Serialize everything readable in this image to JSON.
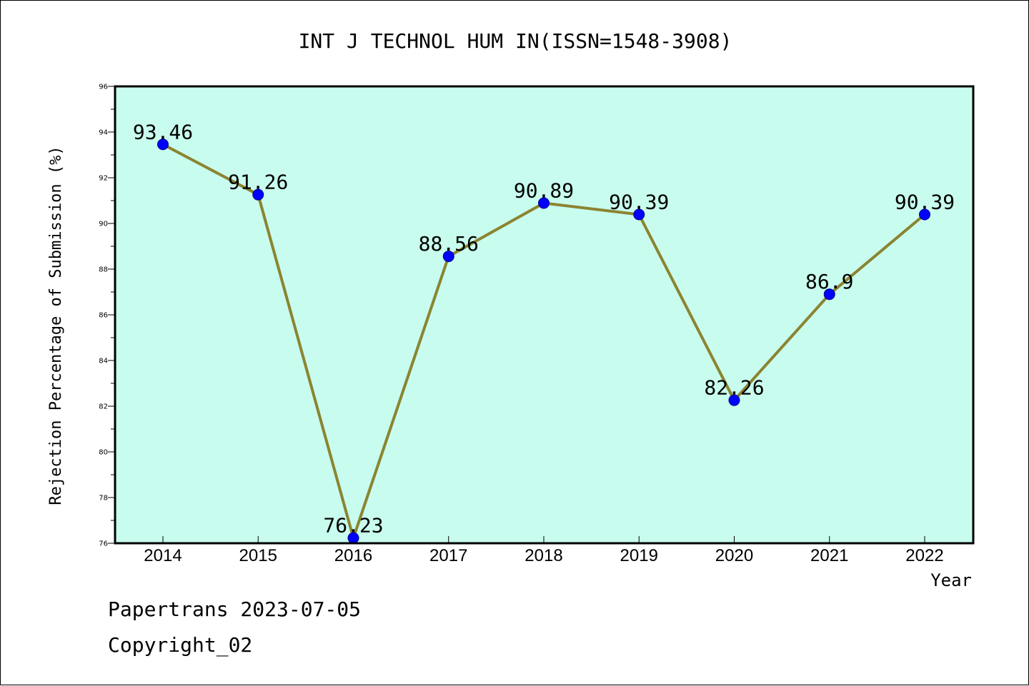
{
  "chart_data": {
    "type": "line",
    "title": "INT J TECHNOL HUM IN(ISSN=1548-3908)",
    "xlabel": "Year",
    "ylabel": "Rejection Percentage of Submission (%)",
    "categories": [
      "2014",
      "2015",
      "2016",
      "2017",
      "2018",
      "2019",
      "2020",
      "2021",
      "2022"
    ],
    "series": [
      {
        "values": [
          93.46,
          91.26,
          76.23,
          88.56,
          90.89,
          90.39,
          82.26,
          86.9,
          90.39
        ],
        "labels": [
          "93.46",
          "91.26",
          "76.23",
          "88.56",
          "90.89",
          "90.39",
          "82.26",
          "86.9",
          "90.39"
        ]
      }
    ],
    "ylim": [
      76,
      96
    ],
    "yticks": [
      "76",
      "78",
      "80",
      "82",
      "84",
      "86",
      "88",
      "90",
      "92",
      "94",
      "96"
    ],
    "grid": false,
    "colors": {
      "plot_bg": "#c8fcee",
      "line": "#8b8431",
      "marker": "#0000ff"
    }
  },
  "footer": {
    "line1": "Papertrans 2023-07-05",
    "line2": "Copyright_02"
  }
}
